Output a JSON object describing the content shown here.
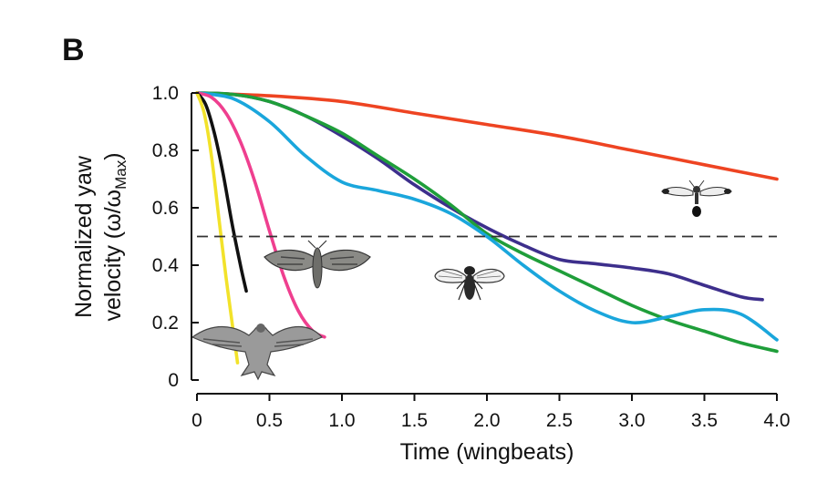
{
  "panel_label": "B",
  "chart_data": {
    "type": "line",
    "xlabel": "Time (wingbeats)",
    "ylabel_line1": "Normalized yaw",
    "ylabel_line2_prefix": "velocity (ω/ω",
    "ylabel_subscript": "Max",
    "ylabel_line2_suffix": ")",
    "xlim": [
      0,
      4.0
    ],
    "ylim": [
      0,
      1.0
    ],
    "x_ticks": [
      0,
      0.5,
      1.0,
      1.5,
      2.0,
      2.5,
      3.0,
      3.5,
      4.0
    ],
    "x_tick_labels": [
      "0",
      "0.5",
      "1.0",
      "1.5",
      "2.0",
      "2.5",
      "3.0",
      "3.5",
      "4.0"
    ],
    "y_ticks": [
      0,
      0.2,
      0.4,
      0.6,
      0.8,
      1.0
    ],
    "y_tick_labels": [
      "0",
      "0.2",
      "0.4",
      "0.6",
      "0.8",
      "1.0"
    ],
    "reference_line": {
      "y": 0.5,
      "style": "dashed",
      "color": "#333333"
    },
    "grid": false,
    "legend": "none",
    "series": [
      {
        "color": "#ee4422",
        "points": [
          [
            0,
            1.0
          ],
          [
            0.5,
            0.99
          ],
          [
            1.0,
            0.97
          ],
          [
            1.5,
            0.93
          ],
          [
            2.0,
            0.89
          ],
          [
            2.5,
            0.85
          ],
          [
            3.0,
            0.8
          ],
          [
            3.5,
            0.75
          ],
          [
            4.0,
            0.7
          ]
        ]
      },
      {
        "color": "#3d2f8c",
        "points": [
          [
            0,
            1.0
          ],
          [
            0.25,
            0.995
          ],
          [
            0.5,
            0.97
          ],
          [
            0.75,
            0.92
          ],
          [
            1.0,
            0.85
          ],
          [
            1.25,
            0.77
          ],
          [
            1.5,
            0.68
          ],
          [
            1.75,
            0.6
          ],
          [
            2.0,
            0.53
          ],
          [
            2.25,
            0.47
          ],
          [
            2.5,
            0.42
          ],
          [
            2.75,
            0.405
          ],
          [
            3.0,
            0.39
          ],
          [
            3.25,
            0.37
          ],
          [
            3.5,
            0.33
          ],
          [
            3.75,
            0.29
          ],
          [
            3.9,
            0.28
          ]
        ]
      },
      {
        "color": "#1f9e3a",
        "points": [
          [
            0,
            1.0
          ],
          [
            0.25,
            0.995
          ],
          [
            0.5,
            0.97
          ],
          [
            0.75,
            0.92
          ],
          [
            1.0,
            0.86
          ],
          [
            1.25,
            0.78
          ],
          [
            1.5,
            0.7
          ],
          [
            1.75,
            0.61
          ],
          [
            2.0,
            0.51
          ],
          [
            2.25,
            0.44
          ],
          [
            2.5,
            0.38
          ],
          [
            2.75,
            0.32
          ],
          [
            3.0,
            0.26
          ],
          [
            3.25,
            0.21
          ],
          [
            3.5,
            0.17
          ],
          [
            3.75,
            0.13
          ],
          [
            4.0,
            0.1
          ]
        ]
      },
      {
        "color": "#1aa6dc",
        "points": [
          [
            0,
            1.0
          ],
          [
            0.25,
            0.98
          ],
          [
            0.5,
            0.9
          ],
          [
            0.75,
            0.78
          ],
          [
            1.0,
            0.69
          ],
          [
            1.25,
            0.66
          ],
          [
            1.5,
            0.63
          ],
          [
            1.75,
            0.58
          ],
          [
            2.0,
            0.5
          ],
          [
            2.25,
            0.4
          ],
          [
            2.5,
            0.31
          ],
          [
            2.75,
            0.24
          ],
          [
            3.0,
            0.2
          ],
          [
            3.25,
            0.22
          ],
          [
            3.5,
            0.245
          ],
          [
            3.75,
            0.23
          ],
          [
            4.0,
            0.14
          ]
        ]
      },
      {
        "color": "#ef3f8f",
        "points": [
          [
            0,
            1.0
          ],
          [
            0.1,
            0.985
          ],
          [
            0.2,
            0.93
          ],
          [
            0.3,
            0.83
          ],
          [
            0.4,
            0.69
          ],
          [
            0.5,
            0.52
          ],
          [
            0.6,
            0.36
          ],
          [
            0.7,
            0.24
          ],
          [
            0.8,
            0.17
          ],
          [
            0.88,
            0.15
          ]
        ]
      },
      {
        "color": "#111111",
        "points": [
          [
            0,
            1.0
          ],
          [
            0.06,
            0.96
          ],
          [
            0.12,
            0.86
          ],
          [
            0.18,
            0.72
          ],
          [
            0.24,
            0.55
          ],
          [
            0.3,
            0.4
          ],
          [
            0.34,
            0.31
          ]
        ]
      },
      {
        "color": "#f2e22a",
        "points": [
          [
            0,
            1.0
          ],
          [
            0.05,
            0.93
          ],
          [
            0.1,
            0.78
          ],
          [
            0.15,
            0.57
          ],
          [
            0.2,
            0.36
          ],
          [
            0.25,
            0.17
          ],
          [
            0.28,
            0.06
          ]
        ]
      }
    ]
  }
}
